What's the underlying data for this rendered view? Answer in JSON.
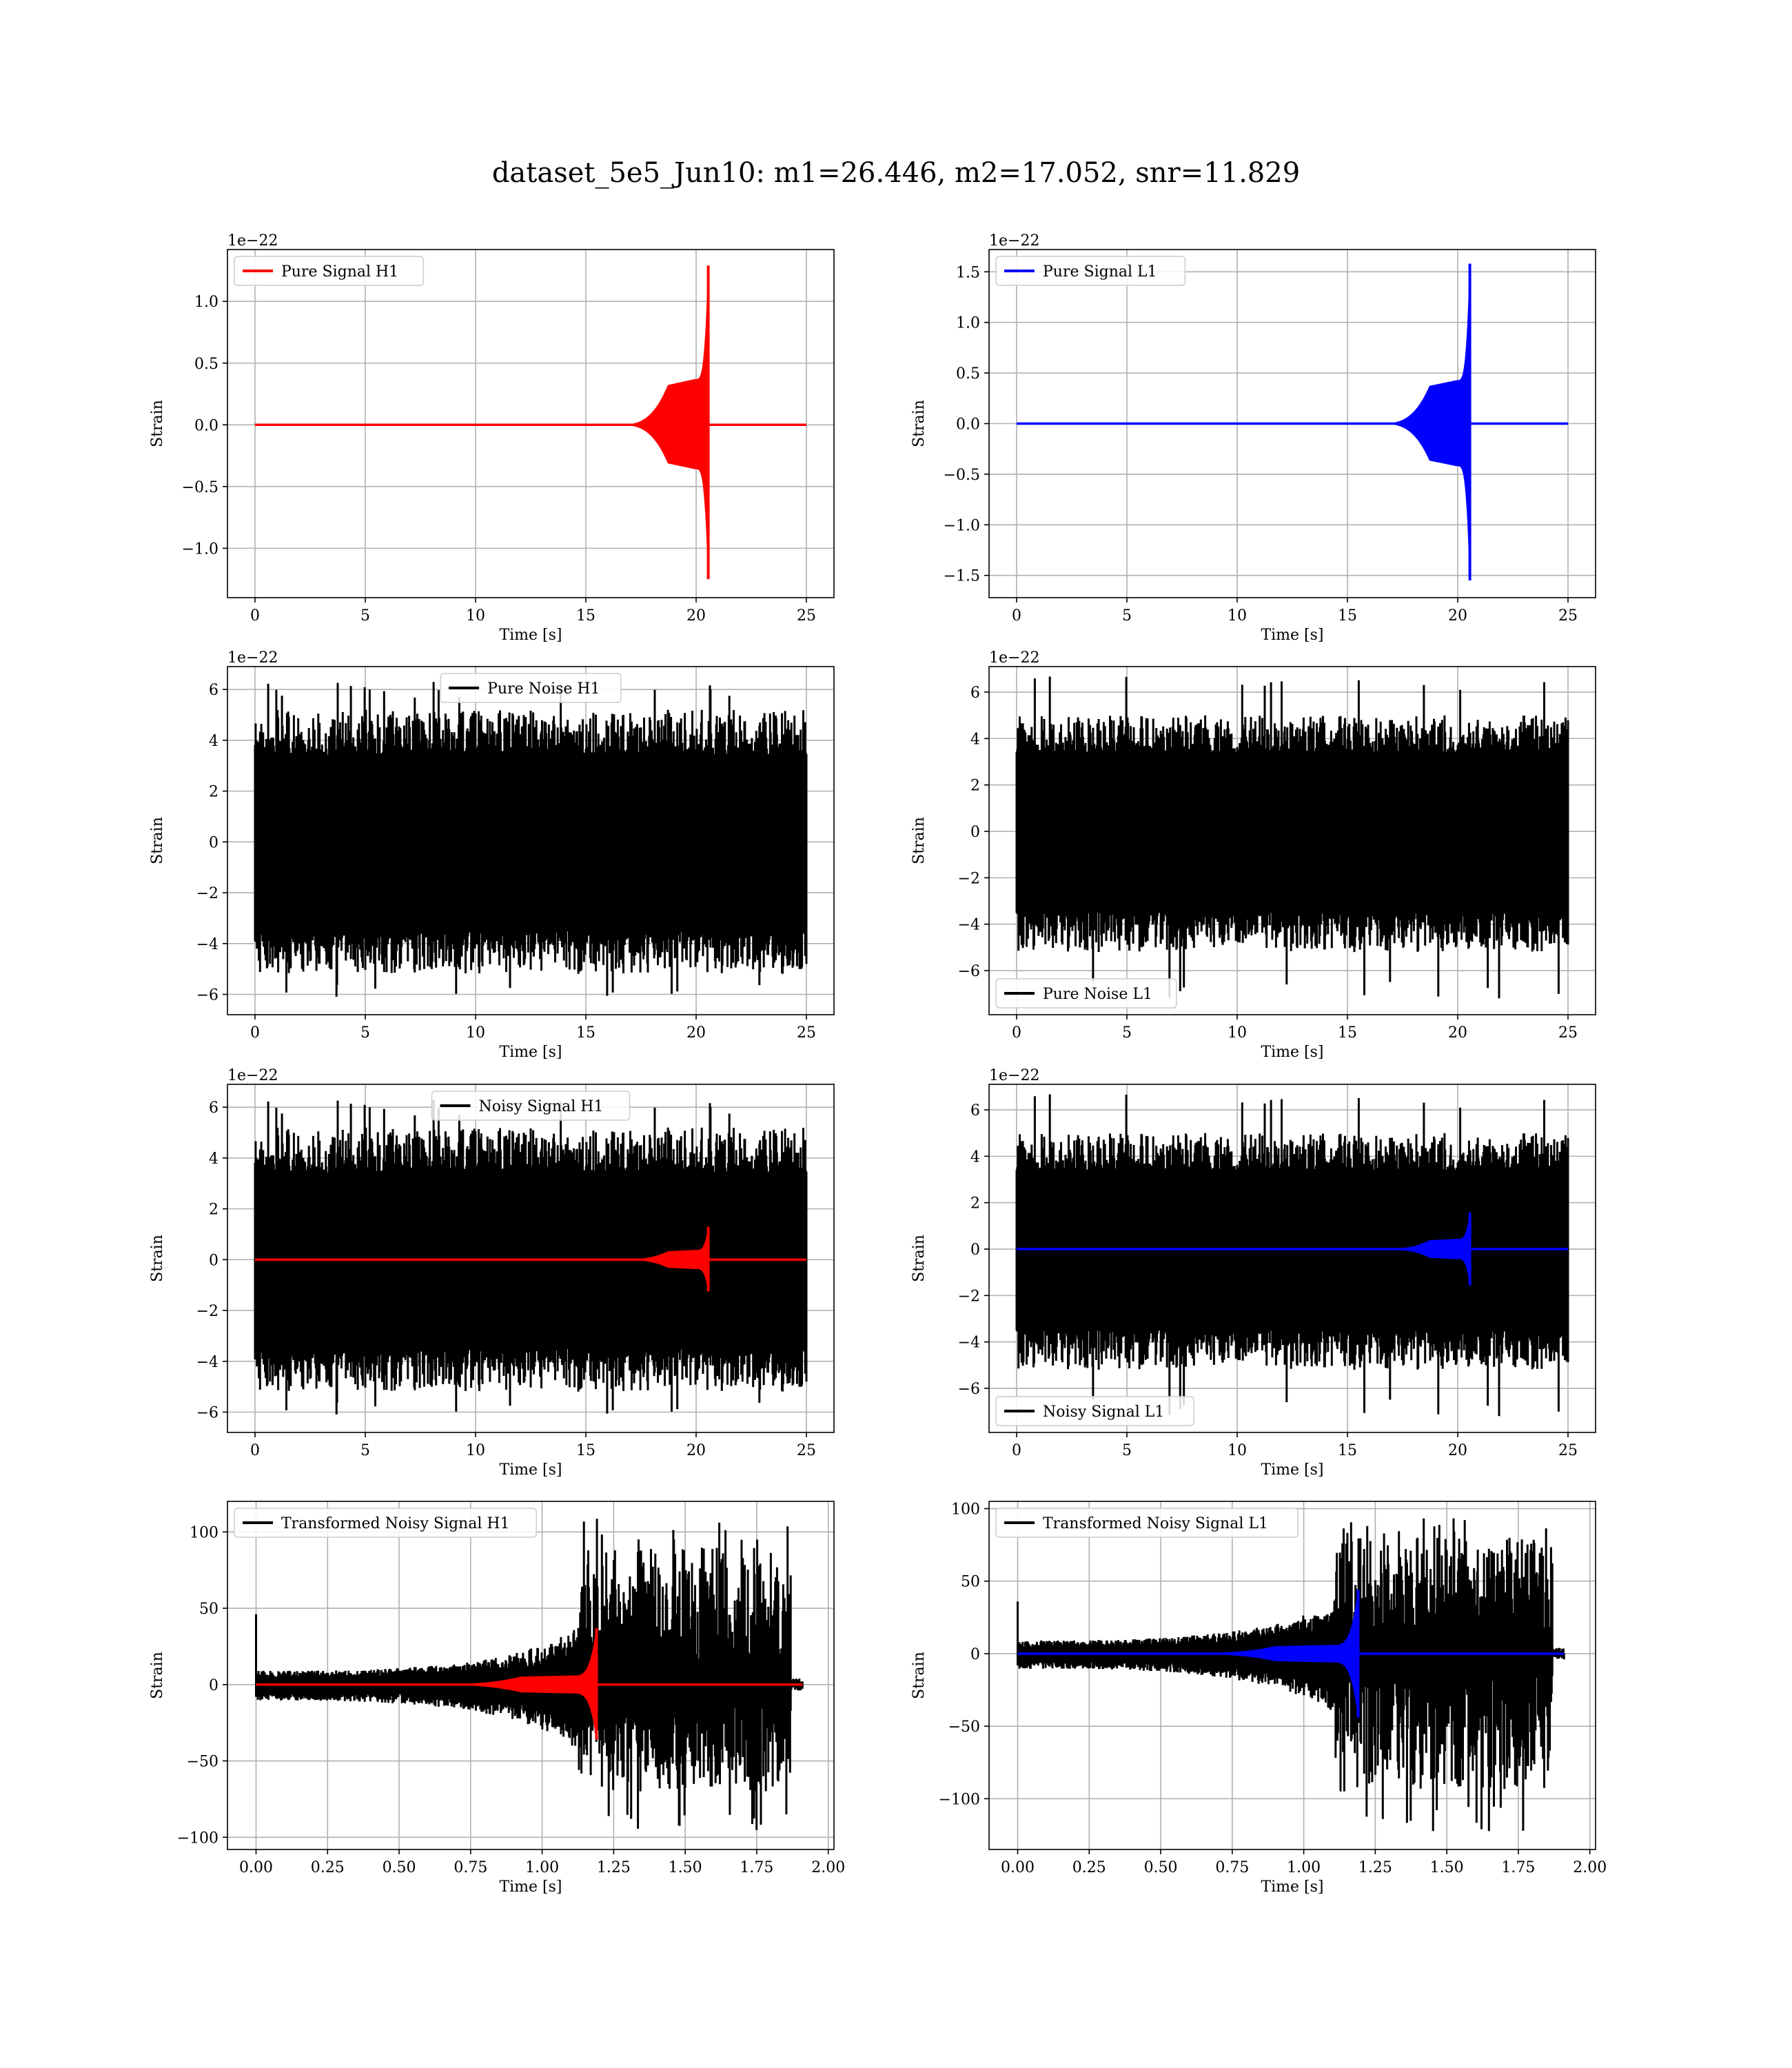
{
  "figure": {
    "title": "dataset_5e5_Jun10: m1=26.446, m2=17.052, snr=11.829"
  },
  "colors": {
    "h1_signal": "#ff0000",
    "l1_signal": "#0000ff",
    "noise": "#000000"
  },
  "chart_data": [
    {
      "type": "line",
      "panel": "pure-signal-h1",
      "xlabel": "Time [s]",
      "ylabel": "Strain",
      "offset_text": "1e−22",
      "xlim": [
        -1.25,
        26.25
      ],
      "ylim": [
        -1.4,
        1.42
      ],
      "xticks": [
        0,
        5,
        10,
        15,
        20,
        25
      ],
      "xtick_labels": [
        "0",
        "5",
        "10",
        "15",
        "20",
        "25"
      ],
      "yticks": [
        -1.0,
        -0.5,
        0.0,
        0.5,
        1.0
      ],
      "ytick_labels": [
        "−1.0",
        "−0.5",
        "0.0",
        "0.5",
        "1.0"
      ],
      "legend": {
        "position": "upper left"
      },
      "series": [
        {
          "name": "Pure Signal H1",
          "color": "#ff0000",
          "kind": "chirp",
          "t_start": 0,
          "t_end": 25,
          "t_merge": 20.55,
          "onset": 16.5,
          "plateau": 0.32,
          "peak_pos": 1.29,
          "peak_neg": -1.25
        }
      ]
    },
    {
      "type": "line",
      "panel": "pure-signal-l1",
      "xlabel": "Time [s]",
      "ylabel": "Strain",
      "offset_text": "1e−22",
      "xlim": [
        -1.25,
        26.25
      ],
      "ylim": [
        -1.72,
        1.72
      ],
      "xticks": [
        0,
        5,
        10,
        15,
        20,
        25
      ],
      "xtick_labels": [
        "0",
        "5",
        "10",
        "15",
        "20",
        "25"
      ],
      "yticks": [
        -1.5,
        -1.0,
        -0.5,
        0.0,
        0.5,
        1.0,
        1.5
      ],
      "ytick_labels": [
        "−1.5",
        "−1.0",
        "−0.5",
        "0.0",
        "0.5",
        "1.0",
        "1.5"
      ],
      "legend": {
        "position": "upper left"
      },
      "series": [
        {
          "name": "Pure Signal L1",
          "color": "#0000ff",
          "kind": "chirp",
          "t_start": 0,
          "t_end": 25,
          "t_merge": 20.55,
          "onset": 16.5,
          "plateau": 0.37,
          "peak_pos": 1.58,
          "peak_neg": -1.55
        }
      ]
    },
    {
      "type": "line",
      "panel": "pure-noise-h1",
      "xlabel": "Time [s]",
      "ylabel": "Strain",
      "offset_text": "1e−22",
      "xlim": [
        -1.25,
        26.25
      ],
      "ylim": [
        -6.8,
        6.9
      ],
      "xticks": [
        0,
        5,
        10,
        15,
        20,
        25
      ],
      "xtick_labels": [
        "0",
        "5",
        "10",
        "15",
        "20",
        "25"
      ],
      "yticks": [
        -6,
        -4,
        -2,
        0,
        2,
        4,
        6
      ],
      "ytick_labels": [
        "−6",
        "−4",
        "−2",
        "0",
        "2",
        "4",
        "6"
      ],
      "legend": {
        "position": "upper center"
      },
      "series": [
        {
          "name": "Pure Noise H1",
          "color": "#000000",
          "kind": "noise",
          "t_start": 0,
          "t_end": 25,
          "upper": [
            3.4,
            5.2
          ],
          "lower": [
            -3.5,
            -5.2
          ],
          "max": 6.3,
          "min": -6.2,
          "seed": 11
        }
      ]
    },
    {
      "type": "line",
      "panel": "pure-noise-l1",
      "xlabel": "Time [s]",
      "ylabel": "Strain",
      "offset_text": "1e−22",
      "xlim": [
        -1.25,
        26.25
      ],
      "ylim": [
        -7.9,
        7.1
      ],
      "xticks": [
        0,
        5,
        10,
        15,
        20,
        25
      ],
      "xtick_labels": [
        "0",
        "5",
        "10",
        "15",
        "20",
        "25"
      ],
      "yticks": [
        -6,
        -4,
        -2,
        0,
        2,
        4,
        6
      ],
      "ytick_labels": [
        "−6",
        "−4",
        "−2",
        "0",
        "2",
        "4",
        "6"
      ],
      "legend": {
        "position": "lower left"
      },
      "series": [
        {
          "name": "Pure Noise L1",
          "color": "#000000",
          "kind": "noise",
          "t_start": 0,
          "t_end": 25,
          "upper": [
            3.4,
            5.0
          ],
          "lower": [
            -3.5,
            -5.2
          ],
          "max": 6.7,
          "min": -7.2,
          "seed": 23
        }
      ]
    },
    {
      "type": "line",
      "panel": "noisy-signal-h1",
      "xlabel": "Time [s]",
      "ylabel": "Strain",
      "offset_text": "1e−22",
      "xlim": [
        -1.25,
        26.25
      ],
      "ylim": [
        -6.8,
        6.9
      ],
      "xticks": [
        0,
        5,
        10,
        15,
        20,
        25
      ],
      "xtick_labels": [
        "0",
        "5",
        "10",
        "15",
        "20",
        "25"
      ],
      "yticks": [
        -6,
        -4,
        -2,
        0,
        2,
        4,
        6
      ],
      "ytick_labels": [
        "−6",
        "−4",
        "−2",
        "0",
        "2",
        "4",
        "6"
      ],
      "legend": {
        "position": "upper center"
      },
      "series": [
        {
          "name": "Noisy Signal H1",
          "color": "#000000",
          "kind": "noise",
          "t_start": 0,
          "t_end": 25,
          "upper": [
            3.4,
            5.2
          ],
          "lower": [
            -3.5,
            -5.2
          ],
          "max": 6.3,
          "min": -6.2,
          "seed": 11
        },
        {
          "color": "#ff0000",
          "kind": "chirp",
          "t_start": 0,
          "t_end": 25,
          "t_merge": 20.55,
          "onset": 16.5,
          "plateau": 0.32,
          "peak_pos": 1.29,
          "peak_neg": -1.25
        }
      ]
    },
    {
      "type": "line",
      "panel": "noisy-signal-l1",
      "xlabel": "Time [s]",
      "ylabel": "Strain",
      "offset_text": "1e−22",
      "xlim": [
        -1.25,
        26.25
      ],
      "ylim": [
        -7.9,
        7.1
      ],
      "xticks": [
        0,
        5,
        10,
        15,
        20,
        25
      ],
      "xtick_labels": [
        "0",
        "5",
        "10",
        "15",
        "20",
        "25"
      ],
      "yticks": [
        -6,
        -4,
        -2,
        0,
        2,
        4,
        6
      ],
      "ytick_labels": [
        "−6",
        "−4",
        "−2",
        "0",
        "2",
        "4",
        "6"
      ],
      "legend": {
        "position": "lower left"
      },
      "series": [
        {
          "name": "Noisy Signal L1",
          "color": "#000000",
          "kind": "noise",
          "t_start": 0,
          "t_end": 25,
          "upper": [
            3.4,
            5.0
          ],
          "lower": [
            -3.5,
            -5.2
          ],
          "max": 6.7,
          "min": -7.2,
          "seed": 23
        },
        {
          "color": "#0000ff",
          "kind": "chirp",
          "t_start": 0,
          "t_end": 25,
          "t_merge": 20.55,
          "onset": 16.5,
          "plateau": 0.37,
          "peak_pos": 1.58,
          "peak_neg": -1.55
        }
      ]
    },
    {
      "type": "line",
      "panel": "transformed-noisy-signal-h1",
      "xlabel": "Time [s]",
      "ylabel": "Strain",
      "offset_text": "",
      "xlim": [
        -0.1,
        2.02
      ],
      "ylim": [
        -108,
        120
      ],
      "xticks": [
        0.0,
        0.25,
        0.5,
        0.75,
        1.0,
        1.25,
        1.5,
        1.75,
        2.0
      ],
      "xtick_labels": [
        "0.00",
        "0.25",
        "0.50",
        "0.75",
        "1.00",
        "1.25",
        "1.50",
        "1.75",
        "2.00"
      ],
      "yticks": [
        -100,
        -50,
        0,
        50,
        100
      ],
      "ytick_labels": [
        "−100",
        "−50",
        "0",
        "50",
        "100"
      ],
      "legend": {
        "position": "upper left"
      },
      "series": [
        {
          "name": "Transformed Noisy Signal H1",
          "color": "#000000",
          "kind": "transformed",
          "t_start": 0,
          "t_end": 1.91,
          "t_merge": 1.125,
          "t_cut": 1.87,
          "spike": 46,
          "upper": [
            7,
            90
          ],
          "lower": [
            -8,
            -70
          ],
          "max": 110,
          "min": -98,
          "seed": 37
        },
        {
          "color": "#ff0000",
          "kind": "chirp",
          "t_start": 0,
          "t_end": 1.91,
          "t_merge": 1.19,
          "onset": 0.6,
          "plateau": 5,
          "peak_pos": 37,
          "peak_neg": -36
        }
      ]
    },
    {
      "type": "line",
      "panel": "transformed-noisy-signal-l1",
      "xlabel": "Time [s]",
      "ylabel": "Strain",
      "offset_text": "",
      "xlim": [
        -0.1,
        2.02
      ],
      "ylim": [
        -135,
        105
      ],
      "xticks": [
        0.0,
        0.25,
        0.5,
        0.75,
        1.0,
        1.25,
        1.5,
        1.75,
        2.0
      ],
      "xtick_labels": [
        "0.00",
        "0.25",
        "0.50",
        "0.75",
        "1.00",
        "1.25",
        "1.50",
        "1.75",
        "2.00"
      ],
      "yticks": [
        -100,
        -50,
        0,
        50,
        100
      ],
      "ytick_labels": [
        "−100",
        "−50",
        "0",
        "50",
        "100"
      ],
      "legend": {
        "position": "upper left"
      },
      "series": [
        {
          "name": "Transformed Noisy Signal L1",
          "color": "#000000",
          "kind": "transformed",
          "t_start": 0,
          "t_end": 1.91,
          "t_merge": 1.11,
          "t_cut": 1.87,
          "spike": 36,
          "upper": [
            7,
            80
          ],
          "lower": [
            -8,
            -95
          ],
          "max": 94,
          "min": -124,
          "seed": 53
        },
        {
          "color": "#0000ff",
          "kind": "chirp",
          "t_start": 0,
          "t_end": 1.91,
          "t_merge": 1.19,
          "onset": 0.55,
          "plateau": 5,
          "peak_pos": 44,
          "peak_neg": -44
        }
      ]
    }
  ]
}
